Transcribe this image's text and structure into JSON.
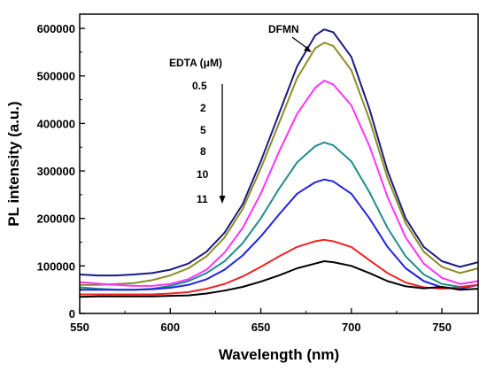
{
  "chart_data": {
    "type": "line",
    "xlabel": "Wavelength (nm)",
    "ylabel": "PL intensity (a.u.)",
    "xlim": [
      550,
      770
    ],
    "ylim": [
      0,
      630000
    ],
    "xticks": [
      550,
      600,
      650,
      700,
      750
    ],
    "yticks": [
      0,
      100000,
      200000,
      300000,
      400000,
      500000,
      600000
    ],
    "xtick_labels": [
      "550",
      "600",
      "650",
      "700",
      "750"
    ],
    "ytick_labels": [
      "0",
      "100000",
      "200000",
      "300000",
      "400000",
      "500000",
      "600000"
    ],
    "grid": false,
    "annotations": {
      "dfmn": "DFMN",
      "edta_title": "EDTA (μM)",
      "edta_levels": [
        "0.5",
        "2",
        "5",
        "8",
        "10",
        "11"
      ]
    },
    "x": [
      550,
      560,
      570,
      580,
      590,
      600,
      610,
      620,
      630,
      640,
      650,
      660,
      670,
      680,
      685,
      690,
      700,
      710,
      720,
      730,
      740,
      750,
      760,
      770
    ],
    "series": [
      {
        "color": "#1a1a7e",
        "values": [
          82000,
          80000,
          80000,
          82000,
          85000,
          92000,
          105000,
          130000,
          170000,
          230000,
          320000,
          420000,
          520000,
          585000,
          598000,
          592000,
          540000,
          430000,
          300000,
          200000,
          140000,
          110000,
          98000,
          108000
        ]
      },
      {
        "color": "#8c8c28",
        "values": [
          60000,
          60000,
          62000,
          64000,
          70000,
          80000,
          95000,
          120000,
          160000,
          220000,
          305000,
          400000,
          495000,
          558000,
          570000,
          563000,
          512000,
          408000,
          285000,
          190000,
          130000,
          98000,
          85000,
          95000
        ]
      },
      {
        "color": "#ff33ff",
        "values": [
          66000,
          63000,
          60000,
          58000,
          58000,
          62000,
          72000,
          92000,
          128000,
          180000,
          252000,
          340000,
          420000,
          475000,
          490000,
          482000,
          438000,
          352000,
          245000,
          160000,
          105000,
          75000,
          62000,
          68000
        ]
      },
      {
        "color": "#1f8c8c",
        "values": [
          55000,
          52000,
          50000,
          50000,
          52000,
          58000,
          68000,
          85000,
          110000,
          148000,
          200000,
          262000,
          318000,
          352000,
          360000,
          354000,
          320000,
          255000,
          180000,
          120000,
          82000,
          62000,
          56000,
          60000
        ]
      },
      {
        "color": "#2222dd",
        "values": [
          50000,
          50000,
          50000,
          50000,
          51000,
          54000,
          60000,
          72000,
          92000,
          122000,
          162000,
          208000,
          252000,
          276000,
          282000,
          278000,
          252000,
          200000,
          140000,
          95000,
          68000,
          55000,
          52000,
          60000
        ]
      },
      {
        "color": "#ee2222",
        "values": [
          40000,
          40000,
          40000,
          40000,
          40000,
          42000,
          45000,
          52000,
          62000,
          78000,
          98000,
          120000,
          140000,
          152000,
          155000,
          152000,
          140000,
          112000,
          85000,
          65000,
          55000,
          52000,
          55000,
          60000
        ]
      },
      {
        "color": "#000000",
        "values": [
          35000,
          36000,
          36000,
          36000,
          36000,
          37000,
          38000,
          42000,
          48000,
          56000,
          67000,
          80000,
          95000,
          105000,
          110000,
          108000,
          100000,
          85000,
          68000,
          57000,
          53000,
          56000,
          50000,
          52000
        ]
      }
    ]
  }
}
